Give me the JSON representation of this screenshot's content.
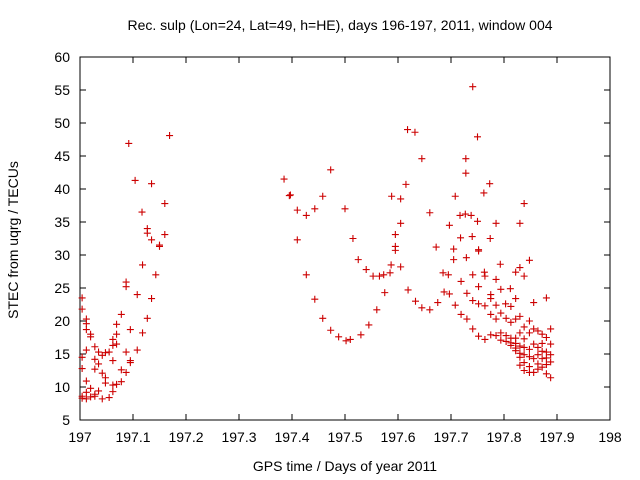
{
  "chart_data": {
    "type": "scatter",
    "title": "Rec. sulp (Lon=24, Lat=49, h=HE), days 196-197, 2011, window 004",
    "xlabel": "GPS time / Days of year 2011",
    "ylabel": "STEC from uqrg / TECUs",
    "xlim": [
      197,
      198
    ],
    "ylim": [
      5,
      60
    ],
    "grid": false,
    "marker": "+",
    "color": "#cc0000",
    "x_ticks": [
      {
        "value": 197,
        "label": "197"
      },
      {
        "value": 197.1,
        "label": "197.1"
      },
      {
        "value": 197.2,
        "label": "197.2"
      },
      {
        "value": 197.3,
        "label": "197.3"
      },
      {
        "value": 197.4,
        "label": "197.4"
      },
      {
        "value": 197.5,
        "label": "197.5"
      },
      {
        "value": 197.6,
        "label": "197.6"
      },
      {
        "value": 197.7,
        "label": "197.7"
      },
      {
        "value": 197.8,
        "label": "197.8"
      },
      {
        "value": 197.9,
        "label": "197.9"
      },
      {
        "value": 198,
        "label": "198"
      }
    ],
    "y_ticks": [
      {
        "value": 5,
        "label": "5"
      },
      {
        "value": 10,
        "label": "10"
      },
      {
        "value": 15,
        "label": "15"
      },
      {
        "value": 20,
        "label": "20"
      },
      {
        "value": 25,
        "label": "25"
      },
      {
        "value": 30,
        "label": "30"
      },
      {
        "value": 35,
        "label": "35"
      },
      {
        "value": 40,
        "label": "40"
      },
      {
        "value": 45,
        "label": "45"
      },
      {
        "value": 50,
        "label": "50"
      },
      {
        "value": 55,
        "label": "55"
      },
      {
        "value": 60,
        "label": "60"
      }
    ],
    "series": [
      {
        "name": "STEC",
        "points": [
          [
            197.004,
            23.5
          ],
          [
            197.004,
            21.8
          ],
          [
            197.004,
            14.5
          ],
          [
            197.004,
            12.8
          ],
          [
            197.004,
            8.6
          ],
          [
            197.004,
            8.3
          ],
          [
            197.012,
            20.3
          ],
          [
            197.012,
            19.6
          ],
          [
            197.012,
            18.7
          ],
          [
            197.012,
            15.6
          ],
          [
            197.012,
            10.9
          ],
          [
            197.012,
            9.2
          ],
          [
            197.012,
            8.2
          ],
          [
            197.02,
            18.0
          ],
          [
            197.02,
            17.6
          ],
          [
            197.02,
            9.8
          ],
          [
            197.02,
            8.5
          ],
          [
            197.028,
            16.1
          ],
          [
            197.028,
            14.2
          ],
          [
            197.028,
            12.7
          ],
          [
            197.028,
            8.9
          ],
          [
            197.028,
            8.6
          ],
          [
            197.035,
            15.3
          ],
          [
            197.035,
            13.5
          ],
          [
            197.035,
            9.4
          ],
          [
            197.042,
            14.8
          ],
          [
            197.042,
            12.1
          ],
          [
            197.042,
            8.2
          ],
          [
            197.048,
            15.2
          ],
          [
            197.048,
            11.4
          ],
          [
            197.048,
            10.6
          ],
          [
            197.055,
            15.3
          ],
          [
            197.055,
            8.4
          ],
          [
            197.062,
            16.3
          ],
          [
            197.062,
            17.2
          ],
          [
            197.062,
            14.0
          ],
          [
            197.062,
            9.3
          ],
          [
            197.062,
            10.3
          ],
          [
            197.069,
            19.5
          ],
          [
            197.069,
            18.0
          ],
          [
            197.069,
            16.5
          ],
          [
            197.069,
            10.4
          ],
          [
            197.078,
            21.0
          ],
          [
            197.078,
            12.6
          ],
          [
            197.078,
            10.8
          ],
          [
            197.087,
            25.9
          ],
          [
            197.087,
            25.2
          ],
          [
            197.087,
            15.3
          ],
          [
            197.087,
            12.2
          ],
          [
            197.095,
            18.7
          ],
          [
            197.095,
            14.0
          ],
          [
            197.095,
            13.7
          ],
          [
            197.108,
            24.0
          ],
          [
            197.108,
            15.6
          ],
          [
            197.118,
            28.5
          ],
          [
            197.118,
            18.2
          ],
          [
            197.127,
            34.0
          ],
          [
            197.127,
            33.3
          ],
          [
            197.127,
            20.4
          ],
          [
            197.135,
            32.3
          ],
          [
            197.135,
            23.4
          ],
          [
            197.135,
            40.8
          ],
          [
            197.143,
            27.0
          ],
          [
            197.15,
            31.3
          ],
          [
            197.15,
            31.5
          ],
          [
            197.16,
            37.8
          ],
          [
            197.16,
            33.1
          ],
          [
            197.092,
            46.9
          ],
          [
            197.104,
            41.3
          ],
          [
            197.117,
            36.5
          ],
          [
            197.169,
            48.1
          ],
          [
            197.385,
            41.5
          ],
          [
            197.395,
            39.0
          ],
          [
            197.397,
            39.1
          ],
          [
            197.41,
            36.8
          ],
          [
            197.41,
            32.3
          ],
          [
            197.427,
            27.0
          ],
          [
            197.427,
            36.0
          ],
          [
            197.443,
            37.0
          ],
          [
            197.443,
            23.3
          ],
          [
            197.458,
            38.9
          ],
          [
            197.458,
            20.4
          ],
          [
            197.473,
            42.9
          ],
          [
            197.473,
            18.6
          ],
          [
            197.488,
            17.6
          ],
          [
            197.5,
            37.0
          ],
          [
            197.502,
            17.0
          ],
          [
            197.51,
            17.2
          ],
          [
            197.515,
            32.5
          ],
          [
            197.525,
            29.3
          ],
          [
            197.53,
            17.9
          ],
          [
            197.54,
            27.8
          ],
          [
            197.545,
            19.4
          ],
          [
            197.553,
            26.8
          ],
          [
            197.56,
            21.7
          ],
          [
            197.565,
            26.8
          ],
          [
            197.573,
            27.0
          ],
          [
            197.575,
            24.3
          ],
          [
            197.585,
            27.3
          ],
          [
            197.587,
            28.5
          ],
          [
            197.588,
            38.9
          ],
          [
            197.595,
            33.1
          ],
          [
            197.595,
            31.3
          ],
          [
            197.595,
            30.7
          ],
          [
            197.605,
            38.5
          ],
          [
            197.605,
            34.8
          ],
          [
            197.605,
            28.2
          ],
          [
            197.615,
            40.7
          ],
          [
            197.618,
            49.0
          ],
          [
            197.619,
            24.7
          ],
          [
            197.632,
            48.6
          ],
          [
            197.633,
            23.0
          ],
          [
            197.645,
            44.6
          ],
          [
            197.645,
            22.0
          ],
          [
            197.66,
            36.4
          ],
          [
            197.66,
            21.7
          ],
          [
            197.672,
            31.2
          ],
          [
            197.675,
            22.8
          ],
          [
            197.685,
            27.3
          ],
          [
            197.687,
            24.4
          ],
          [
            197.695,
            27.0
          ],
          [
            197.697,
            34.5
          ],
          [
            197.697,
            24.1
          ],
          [
            197.705,
            30.9
          ],
          [
            197.705,
            29.3
          ],
          [
            197.708,
            38.9
          ],
          [
            197.708,
            22.4
          ],
          [
            197.717,
            36.0
          ],
          [
            197.718,
            32.6
          ],
          [
            197.719,
            26.0
          ],
          [
            197.719,
            21.0
          ],
          [
            197.727,
            36.2
          ],
          [
            197.728,
            42.4
          ],
          [
            197.728,
            44.6
          ],
          [
            197.729,
            29.6
          ],
          [
            197.73,
            24.2
          ],
          [
            197.73,
            20.3
          ],
          [
            197.738,
            36.0
          ],
          [
            197.74,
            32.8
          ],
          [
            197.741,
            55.5
          ],
          [
            197.741,
            27.0
          ],
          [
            197.741,
            23.1
          ],
          [
            197.741,
            18.8
          ],
          [
            197.75,
            47.9
          ],
          [
            197.75,
            35.1
          ],
          [
            197.752,
            30.8
          ],
          [
            197.752,
            30.6
          ],
          [
            197.752,
            25.2
          ],
          [
            197.752,
            22.6
          ],
          [
            197.752,
            17.7
          ],
          [
            197.762,
            39.4
          ],
          [
            197.763,
            27.4
          ],
          [
            197.764,
            26.8
          ],
          [
            197.764,
            22.3
          ],
          [
            197.764,
            17.2
          ],
          [
            197.773,
            40.8
          ],
          [
            197.774,
            32.5
          ],
          [
            197.775,
            24.0
          ],
          [
            197.775,
            23.4
          ],
          [
            197.775,
            21.0
          ],
          [
            197.775,
            17.9
          ],
          [
            197.785,
            34.8
          ],
          [
            197.785,
            26.3
          ],
          [
            197.785,
            22.4
          ],
          [
            197.785,
            20.3
          ],
          [
            197.785,
            17.8
          ],
          [
            197.793,
            28.6
          ],
          [
            197.794,
            24.8
          ],
          [
            197.794,
            21.2
          ],
          [
            197.794,
            18.2
          ],
          [
            197.794,
            17.1
          ],
          [
            197.803,
            22.6
          ],
          [
            197.804,
            20.4
          ],
          [
            197.804,
            17.8
          ],
          [
            197.804,
            16.9
          ],
          [
            197.812,
            24.9
          ],
          [
            197.813,
            22.2
          ],
          [
            197.813,
            19.8
          ],
          [
            197.813,
            17.4
          ],
          [
            197.813,
            16.7
          ],
          [
            197.813,
            16.3
          ],
          [
            197.822,
            27.4
          ],
          [
            197.822,
            23.4
          ],
          [
            197.822,
            20.3
          ],
          [
            197.822,
            17.4
          ],
          [
            197.822,
            16.6
          ],
          [
            197.822,
            15.9
          ],
          [
            197.822,
            15.5
          ],
          [
            197.83,
            34.8
          ],
          [
            197.83,
            28.1
          ],
          [
            197.83,
            20.7
          ],
          [
            197.83,
            18.2
          ],
          [
            197.83,
            16.2
          ],
          [
            197.83,
            15.1
          ],
          [
            197.83,
            14.5
          ],
          [
            197.83,
            13.3
          ],
          [
            197.838,
            37.8
          ],
          [
            197.838,
            26.8
          ],
          [
            197.838,
            19.1
          ],
          [
            197.838,
            17.3
          ],
          [
            197.838,
            16.0
          ],
          [
            197.838,
            14.9
          ],
          [
            197.838,
            13.7
          ],
          [
            197.838,
            12.5
          ],
          [
            197.848,
            29.2
          ],
          [
            197.848,
            20.0
          ],
          [
            197.848,
            18.2
          ],
          [
            197.848,
            15.7
          ],
          [
            197.848,
            14.6
          ],
          [
            197.848,
            13.1
          ],
          [
            197.848,
            12.2
          ],
          [
            197.856,
            22.8
          ],
          [
            197.856,
            18.8
          ],
          [
            197.856,
            16.5
          ],
          [
            197.856,
            14.3
          ],
          [
            197.856,
            12.2
          ],
          [
            197.864,
            18.5
          ],
          [
            197.864,
            16.0
          ],
          [
            197.864,
            14.9
          ],
          [
            197.864,
            13.5
          ],
          [
            197.864,
            12.7
          ],
          [
            197.872,
            18.0
          ],
          [
            197.872,
            16.6
          ],
          [
            197.872,
            15.4
          ],
          [
            197.872,
            14.3
          ],
          [
            197.872,
            13.0
          ],
          [
            197.88,
            23.5
          ],
          [
            197.88,
            17.5
          ],
          [
            197.88,
            15.3
          ],
          [
            197.88,
            14.4
          ],
          [
            197.88,
            13.4
          ],
          [
            197.88,
            12.0
          ],
          [
            197.888,
            18.8
          ],
          [
            197.888,
            16.5
          ],
          [
            197.888,
            14.9
          ],
          [
            197.888,
            13.8
          ],
          [
            197.888,
            11.4
          ]
        ]
      }
    ]
  }
}
